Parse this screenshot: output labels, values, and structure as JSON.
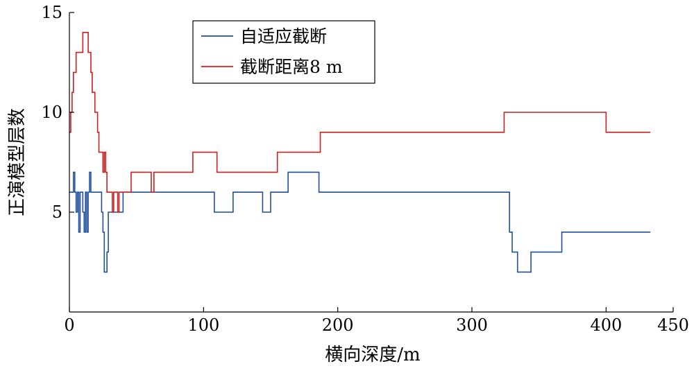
{
  "chart_data": {
    "type": "line",
    "title": "",
    "xlabel": "横向深度/m",
    "ylabel": "正演模型层数",
    "xlim": [
      0,
      450
    ],
    "ylim": [
      0,
      15
    ],
    "x_ticks": [
      0,
      100,
      200,
      300,
      400,
      450
    ],
    "y_ticks": [
      5,
      10,
      15
    ],
    "grid": false,
    "legend_position": "top-center",
    "step": "post",
    "series": [
      {
        "name": "自适应截断",
        "color": "#1f4e9c",
        "points": [
          [
            0,
            6
          ],
          [
            3,
            6
          ],
          [
            3,
            7
          ],
          [
            4,
            7
          ],
          [
            4,
            6
          ],
          [
            5,
            6
          ],
          [
            5,
            5
          ],
          [
            6,
            5
          ],
          [
            6,
            6
          ],
          [
            7,
            6
          ],
          [
            7,
            4
          ],
          [
            8,
            4
          ],
          [
            8,
            6
          ],
          [
            9,
            6
          ],
          [
            9,
            6
          ],
          [
            10,
            6
          ],
          [
            10,
            5
          ],
          [
            11,
            5
          ],
          [
            11,
            4
          ],
          [
            12,
            4
          ],
          [
            12,
            6
          ],
          [
            13,
            6
          ],
          [
            13,
            4
          ],
          [
            14,
            4
          ],
          [
            14,
            6
          ],
          [
            15,
            6
          ],
          [
            15,
            7
          ],
          [
            16,
            7
          ],
          [
            16,
            6
          ],
          [
            24,
            6
          ],
          [
            24,
            5
          ],
          [
            25,
            5
          ],
          [
            25,
            4
          ],
          [
            26,
            4
          ],
          [
            26,
            2
          ],
          [
            28,
            2
          ],
          [
            28,
            3
          ],
          [
            29,
            3
          ],
          [
            29,
            5
          ],
          [
            40,
            5
          ],
          [
            40,
            6
          ],
          [
            108,
            6
          ],
          [
            108,
            5
          ],
          [
            122,
            5
          ],
          [
            122,
            6
          ],
          [
            144,
            6
          ],
          [
            144,
            5
          ],
          [
            150,
            5
          ],
          [
            150,
            6
          ],
          [
            163,
            6
          ],
          [
            163,
            7
          ],
          [
            186,
            7
          ],
          [
            186,
            6
          ],
          [
            328,
            6
          ],
          [
            328,
            4
          ],
          [
            330,
            4
          ],
          [
            330,
            3
          ],
          [
            334,
            3
          ],
          [
            334,
            2
          ],
          [
            344,
            2
          ],
          [
            344,
            3
          ],
          [
            367,
            3
          ],
          [
            367,
            4
          ],
          [
            433,
            4
          ]
        ]
      },
      {
        "name": "截断距离8 m",
        "color": "#cc1f1f",
        "points": [
          [
            0,
            9
          ],
          [
            1,
            9
          ],
          [
            1,
            10
          ],
          [
            2,
            10
          ],
          [
            2,
            11
          ],
          [
            3,
            11
          ],
          [
            3,
            12
          ],
          [
            5,
            12
          ],
          [
            5,
            13
          ],
          [
            10,
            13
          ],
          [
            10,
            14
          ],
          [
            14,
            14
          ],
          [
            14,
            13
          ],
          [
            16,
            13
          ],
          [
            16,
            12
          ],
          [
            17,
            12
          ],
          [
            17,
            11
          ],
          [
            19,
            11
          ],
          [
            19,
            10
          ],
          [
            21,
            10
          ],
          [
            21,
            9
          ],
          [
            22,
            9
          ],
          [
            22,
            8
          ],
          [
            25,
            8
          ],
          [
            25,
            7
          ],
          [
            26,
            7
          ],
          [
            26,
            8
          ],
          [
            27,
            8
          ],
          [
            27,
            7
          ],
          [
            28,
            7
          ],
          [
            28,
            6
          ],
          [
            32,
            6
          ],
          [
            32,
            5
          ],
          [
            33,
            5
          ],
          [
            33,
            6
          ],
          [
            36,
            6
          ],
          [
            36,
            5
          ],
          [
            37,
            5
          ],
          [
            37,
            6
          ],
          [
            46,
            6
          ],
          [
            46,
            7
          ],
          [
            61,
            7
          ],
          [
            61,
            6
          ],
          [
            63,
            6
          ],
          [
            63,
            7
          ],
          [
            92,
            7
          ],
          [
            92,
            8
          ],
          [
            110,
            8
          ],
          [
            110,
            7
          ],
          [
            155,
            7
          ],
          [
            155,
            8
          ],
          [
            187,
            8
          ],
          [
            187,
            9
          ],
          [
            324,
            9
          ],
          [
            324,
            10
          ],
          [
            400,
            10
          ],
          [
            400,
            9
          ],
          [
            433,
            9
          ]
        ]
      }
    ]
  }
}
